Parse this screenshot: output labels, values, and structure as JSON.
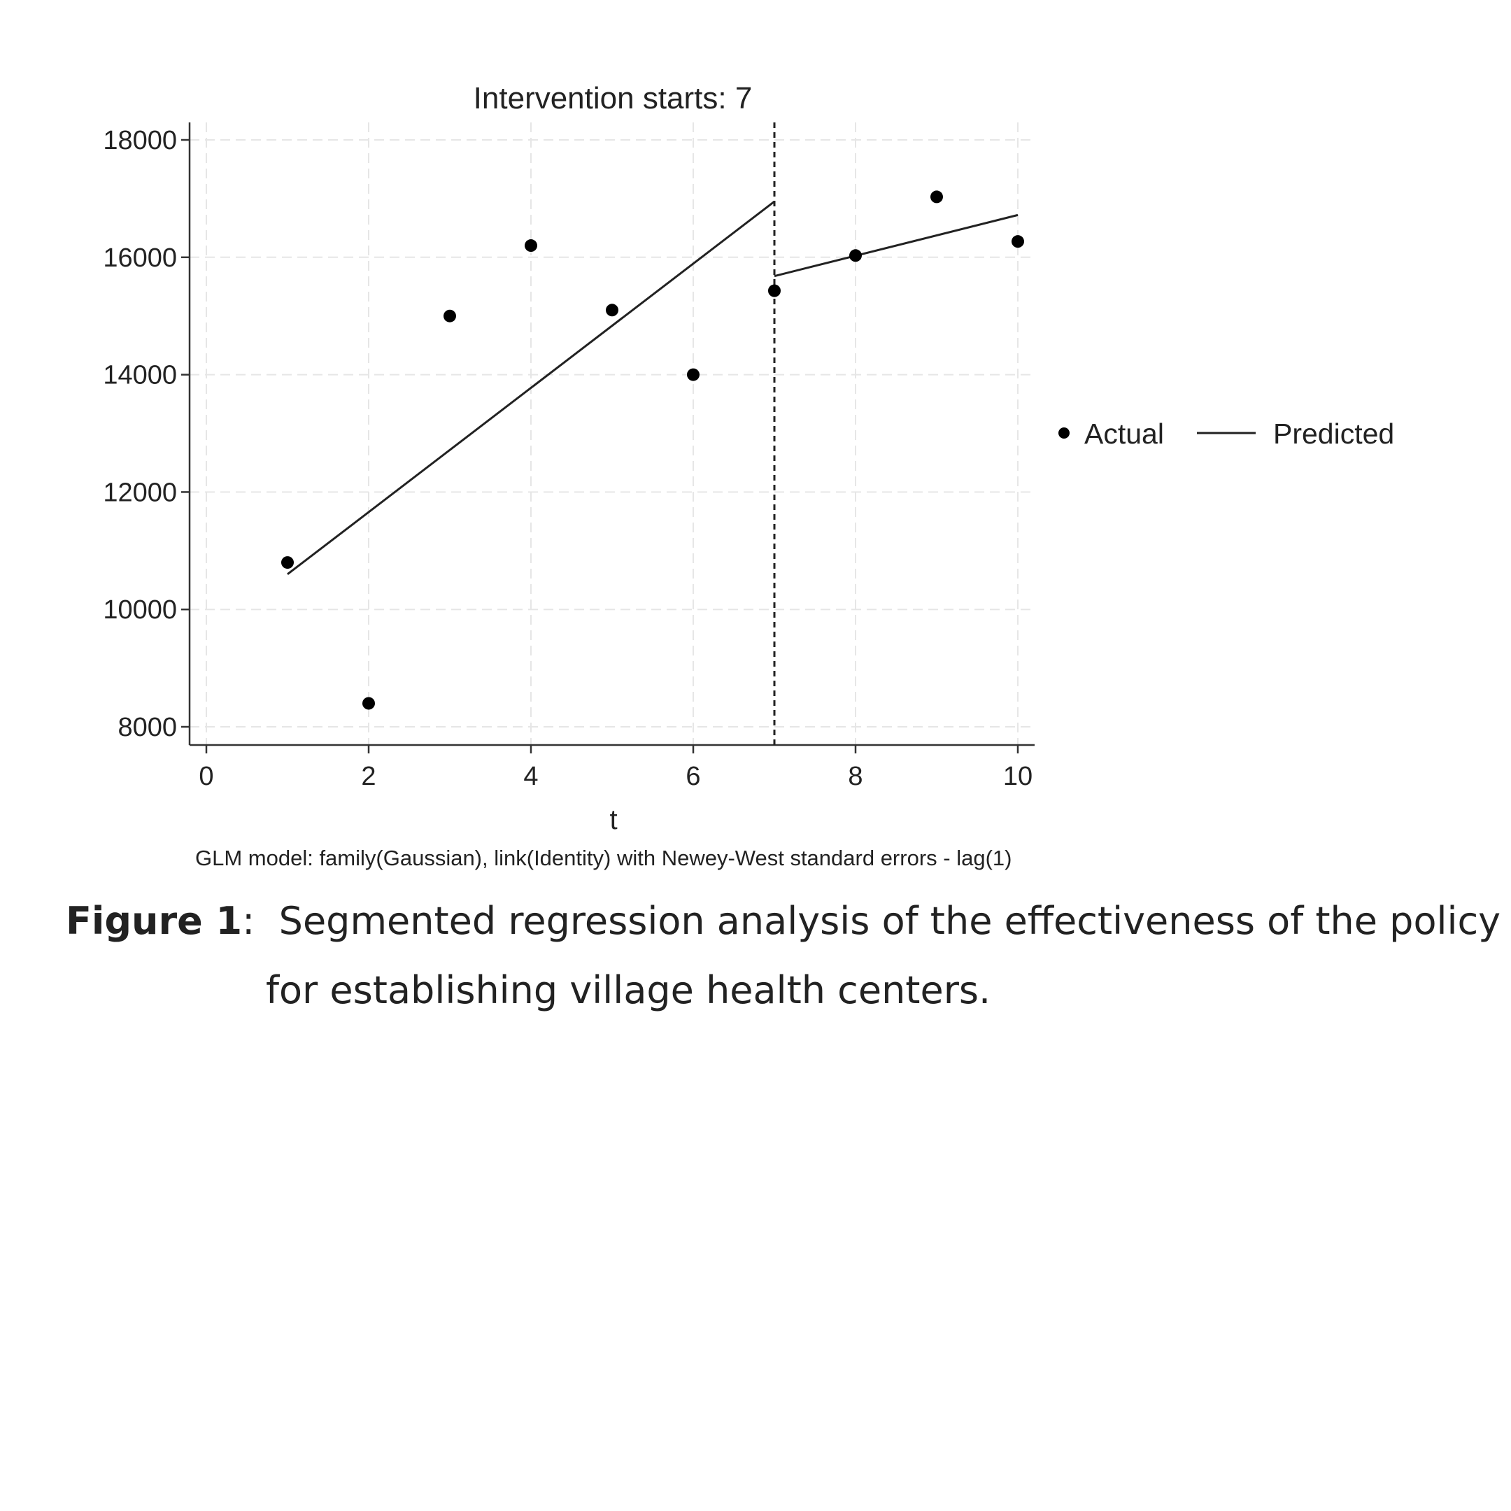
{
  "chart_data": {
    "type": "scatter",
    "title": "Intervention starts: 7",
    "xlabel": "t",
    "ylabel": "",
    "xlim": [
      0,
      10
    ],
    "ylim": [
      8000,
      18000
    ],
    "xticks": [
      "0",
      "2",
      "4",
      "6",
      "8",
      "10"
    ],
    "yticks": [
      "8000",
      "10000",
      "12000",
      "14000",
      "16000",
      "18000"
    ],
    "grid": true,
    "legend_position": "right",
    "intervention_x": 7,
    "series": [
      {
        "name": "Actual",
        "kind": "scatter",
        "x": [
          1,
          2,
          3,
          4,
          5,
          6,
          7,
          8,
          9,
          10
        ],
        "y": [
          10800,
          8400,
          15000,
          16200,
          15100,
          14000,
          15430,
          16030,
          17030,
          16270
        ]
      },
      {
        "name": "Predicted",
        "kind": "line",
        "segments": [
          {
            "x": [
              1,
              7
            ],
            "y": [
              10600,
              16950
            ]
          },
          {
            "x": [
              7,
              10
            ],
            "y": [
              15680,
              16720
            ]
          }
        ]
      }
    ],
    "note": "GLM model: family(Gaussian), link(Identity) with Newey-West standard errors - lag(1)"
  },
  "caption": {
    "label": "Figure 1",
    "separator": ":",
    "line1": "Segmented regression analysis of the effectiveness of the policy",
    "line2": "for establishing village health centers."
  }
}
